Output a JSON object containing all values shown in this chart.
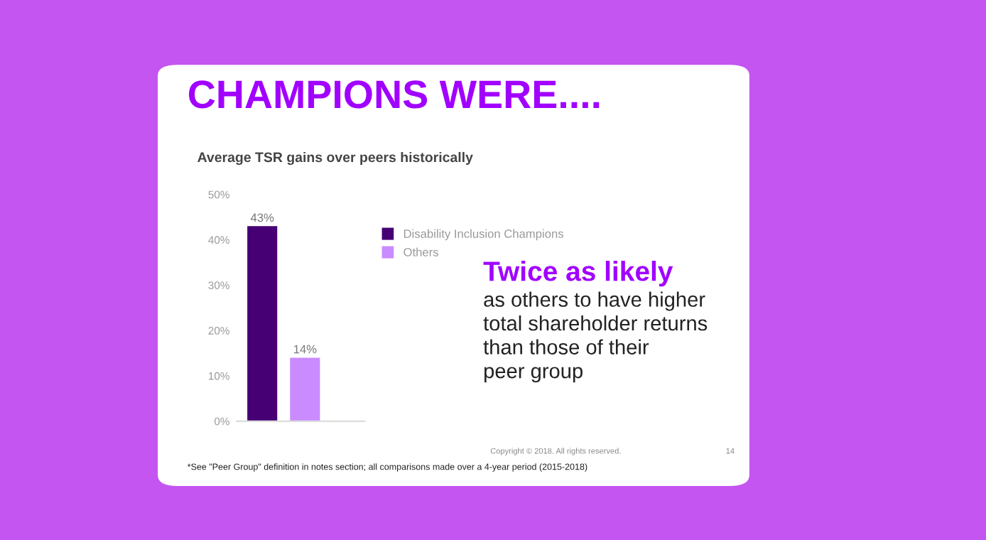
{
  "chart_data": {
    "type": "bar",
    "title": "CHAMPIONS WERE....",
    "subtitle": "Average TSR gains over peers historically",
    "categories": [
      null,
      null
    ],
    "series": [
      {
        "name": "Disability Inclusion Champions",
        "color": "#460073",
        "values": [
          43,
          null
        ],
        "value_labels": [
          "43%",
          null
        ]
      },
      {
        "name": "Others",
        "color": "#c98bff",
        "values": [
          null,
          14
        ],
        "value_labels": [
          null,
          "14%"
        ]
      }
    ],
    "ylim": [
      0,
      50
    ],
    "yticks": [
      {
        "value": 0,
        "label": "0%"
      },
      {
        "value": 10,
        "label": "10%"
      },
      {
        "value": 20,
        "label": "20%"
      },
      {
        "value": 30,
        "label": "30%"
      },
      {
        "value": 40,
        "label": "40%"
      },
      {
        "value": 50,
        "label": "50%"
      }
    ],
    "grid": false,
    "legend": "right",
    "annotations": [
      "Twice as likely",
      "as others to have higher\ntotal shareholder returns\nthan those of their\npeer group",
      "*See \"Peer Group\" definition in notes section; all comparisons made over a 4-year period (2015-2018)",
      "Copyright © 2018. All rights reserved.",
      "14"
    ]
  }
}
